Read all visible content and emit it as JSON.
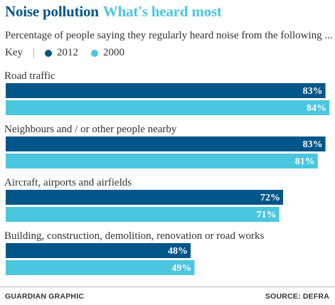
{
  "title": {
    "part1": "Noise pollution",
    "part2": "What's heard most"
  },
  "subtitle": "Percentage of people saying they regularly heard noise from the following ...",
  "key": {
    "label": "Key",
    "separator": "|",
    "items": [
      {
        "label": "2012",
        "color": "#005689"
      },
      {
        "label": "2000",
        "color": "#4bc6df"
      }
    ]
  },
  "footer": {
    "left": "GUARDIAN GRAPHIC",
    "right": "SOURCE: DEFRA"
  },
  "chart_data": {
    "type": "bar",
    "orientation": "horizontal",
    "categories": [
      "Road traffic",
      "Neighbours and / or other people nearby",
      "Aircraft, airports and airfields",
      "Building, construction, demolition, renovation or road works"
    ],
    "series": [
      {
        "name": "2012",
        "color": "#005689",
        "values": [
          83,
          83,
          72,
          48
        ]
      },
      {
        "name": "2000",
        "color": "#4bc6df",
        "values": [
          84,
          81,
          71,
          49
        ]
      }
    ],
    "value_suffix": "%",
    "xlim": [
      0,
      84
    ],
    "grid": false,
    "legend": "top-left"
  }
}
